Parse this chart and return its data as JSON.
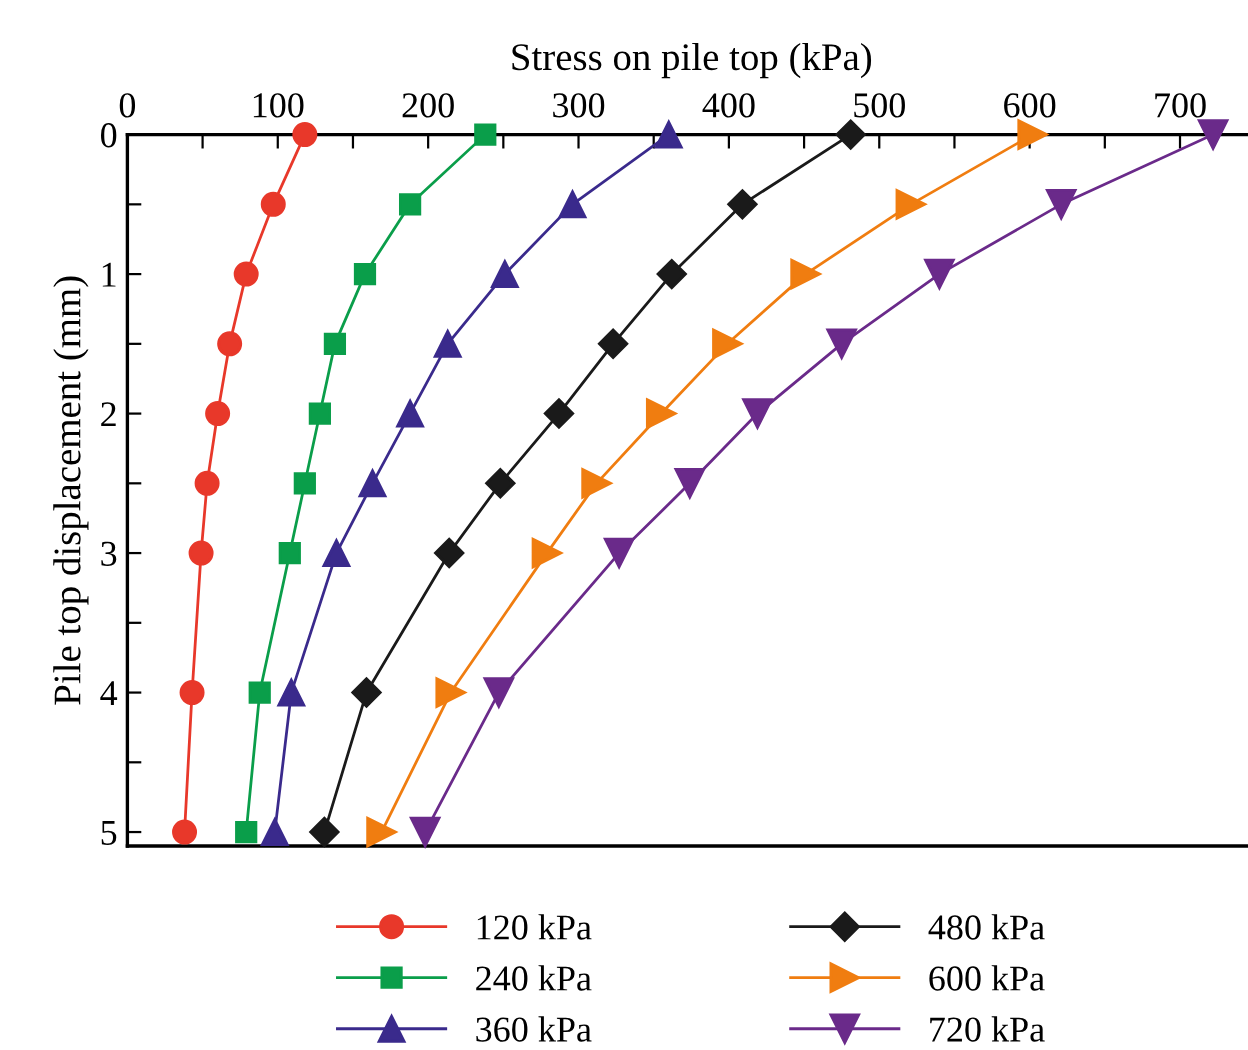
{
  "chart_data": {
    "type": "line",
    "xlabel": "Stress on pile top (kPa)",
    "ylabel": "Pile top displacement (mm)",
    "xlim": [
      0,
      750
    ],
    "xticks": [
      0,
      {
        "value": 50,
        "label": null
      },
      100,
      {
        "value": 150,
        "label": null
      },
      200,
      {
        "value": 250,
        "label": null
      },
      300,
      {
        "value": 350,
        "label": null
      },
      400,
      {
        "value": 450,
        "label": null
      },
      500,
      {
        "value": 550,
        "label": null
      },
      600,
      {
        "value": 650,
        "label": null
      },
      700
    ],
    "ylim": [
      5.1,
      0
    ],
    "yticks": [
      0,
      {
        "value": 0.5,
        "label": null
      },
      1,
      {
        "value": 1.5,
        "label": null
      },
      2,
      {
        "value": 2.5,
        "label": null
      },
      3,
      {
        "value": 3.5,
        "label": null
      },
      4,
      {
        "value": 4.5,
        "label": null
      },
      5
    ],
    "grid": false,
    "legend": "bottom",
    "line_style": "solid",
    "series": [
      {
        "name": "120 kPa",
        "color": "#e8382a",
        "marker": "circle",
        "x": [
          118,
          97,
          79,
          68,
          60,
          53,
          49,
          43,
          38
        ],
        "values": [
          0,
          0.5,
          1,
          1.5,
          2,
          2.5,
          3,
          4,
          5
        ]
      },
      {
        "name": "240 kPa",
        "color": "#0a9e4a",
        "marker": "square",
        "x": [
          238,
          188,
          158,
          138,
          128,
          118,
          108,
          88,
          79
        ],
        "values": [
          0,
          0.5,
          1,
          1.5,
          2,
          2.5,
          3,
          4,
          5
        ]
      },
      {
        "name": "360 kPa",
        "color": "#3a2a8c",
        "marker": "triangle",
        "x": [
          360,
          296,
          251,
          213,
          188,
          163,
          139,
          109,
          98
        ],
        "values": [
          0,
          0.5,
          1,
          1.5,
          2,
          2.5,
          3,
          4,
          5
        ]
      },
      {
        "name": "480 kPa",
        "color": "#1a1a1a",
        "marker": "diamond",
        "x": [
          481,
          409,
          362,
          323,
          287,
          248,
          214,
          159,
          131
        ],
        "values": [
          0,
          0.5,
          1,
          1.5,
          2,
          2.5,
          3,
          4,
          5
        ]
      },
      {
        "name": "600 kPa",
        "color": "#f07d10",
        "marker": "triangle-right",
        "x": [
          602,
          521,
          451,
          399,
          355,
          312,
          279,
          215,
          169
        ],
        "values": [
          0,
          0.5,
          1,
          1.5,
          2,
          2.5,
          3,
          4,
          5
        ]
      },
      {
        "name": "720 kPa",
        "color": "#6a2a8a",
        "marker": "triangle-down",
        "x": [
          722,
          621,
          540,
          475,
          419,
          374,
          327,
          247,
          198
        ],
        "values": [
          0,
          0.5,
          1,
          1.5,
          2,
          2.5,
          3,
          4,
          5
        ]
      }
    ]
  }
}
